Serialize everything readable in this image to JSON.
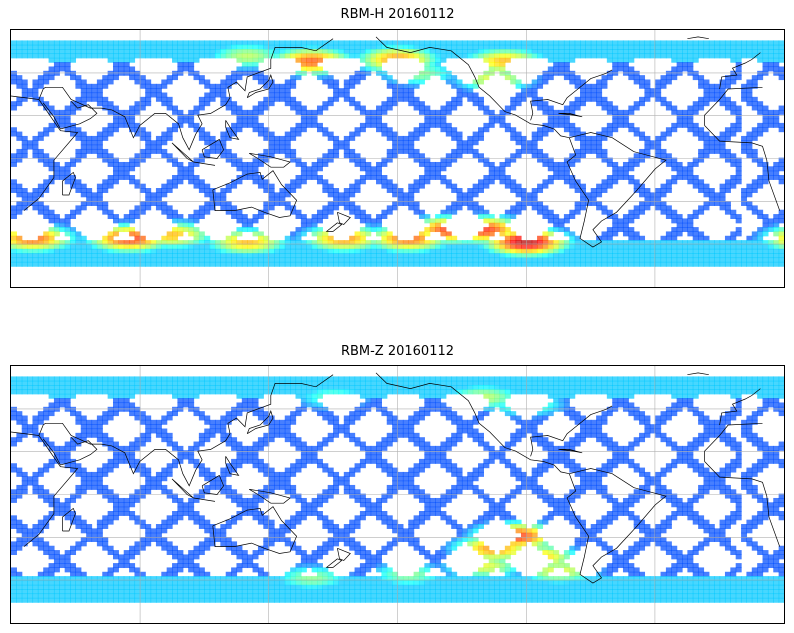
{
  "panels": [
    {
      "title": "RBM-H 20160112",
      "colormap": "jet",
      "hotspots": [
        {
          "lon": 75,
          "lat": -50,
          "level": 0.85
        },
        {
          "lon": 260,
          "lat": -52,
          "level": 0.95
        },
        {
          "lon": 240,
          "lat": -45,
          "level": 0.85
        },
        {
          "lon": 30,
          "lat": -50,
          "level": 0.8
        },
        {
          "lon": 95,
          "lat": -48,
          "level": 0.7
        },
        {
          "lon": 130,
          "lat": -52,
          "level": 0.7
        },
        {
          "lon": 175,
          "lat": -50,
          "level": 0.75
        },
        {
          "lon": 205,
          "lat": -50,
          "level": 0.8
        },
        {
          "lon": 225,
          "lat": -45,
          "level": 0.85
        },
        {
          "lon": 160,
          "lat": 52,
          "level": 0.8
        },
        {
          "lon": 200,
          "lat": 53,
          "level": 0.75
        },
        {
          "lon": 250,
          "lat": 52,
          "level": 0.7
        },
        {
          "lon": 130,
          "lat": 55,
          "level": 0.55
        },
        {
          "lon": 245,
          "lat": 42,
          "level": 0.6
        },
        {
          "lon": 210,
          "lat": 45,
          "level": 0.5
        }
      ]
    },
    {
      "title": "RBM-Z 20160112",
      "colormap": "jet",
      "hotspots": [
        {
          "lon": 255,
          "lat": -28,
          "level": 0.85
        },
        {
          "lon": 245,
          "lat": -35,
          "level": 0.75
        },
        {
          "lon": 265,
          "lat": -40,
          "level": 0.7
        },
        {
          "lon": 240,
          "lat": -45,
          "level": 0.6
        },
        {
          "lon": 275,
          "lat": -48,
          "level": 0.6
        },
        {
          "lon": 160,
          "lat": -52,
          "level": 0.5
        },
        {
          "lon": 205,
          "lat": -50,
          "level": 0.5
        },
        {
          "lon": 240,
          "lat": 52,
          "level": 0.55
        },
        {
          "lon": 170,
          "lat": 52,
          "level": 0.45
        },
        {
          "lon": 260,
          "lat": 48,
          "level": 0.5
        }
      ]
    }
  ]
}
